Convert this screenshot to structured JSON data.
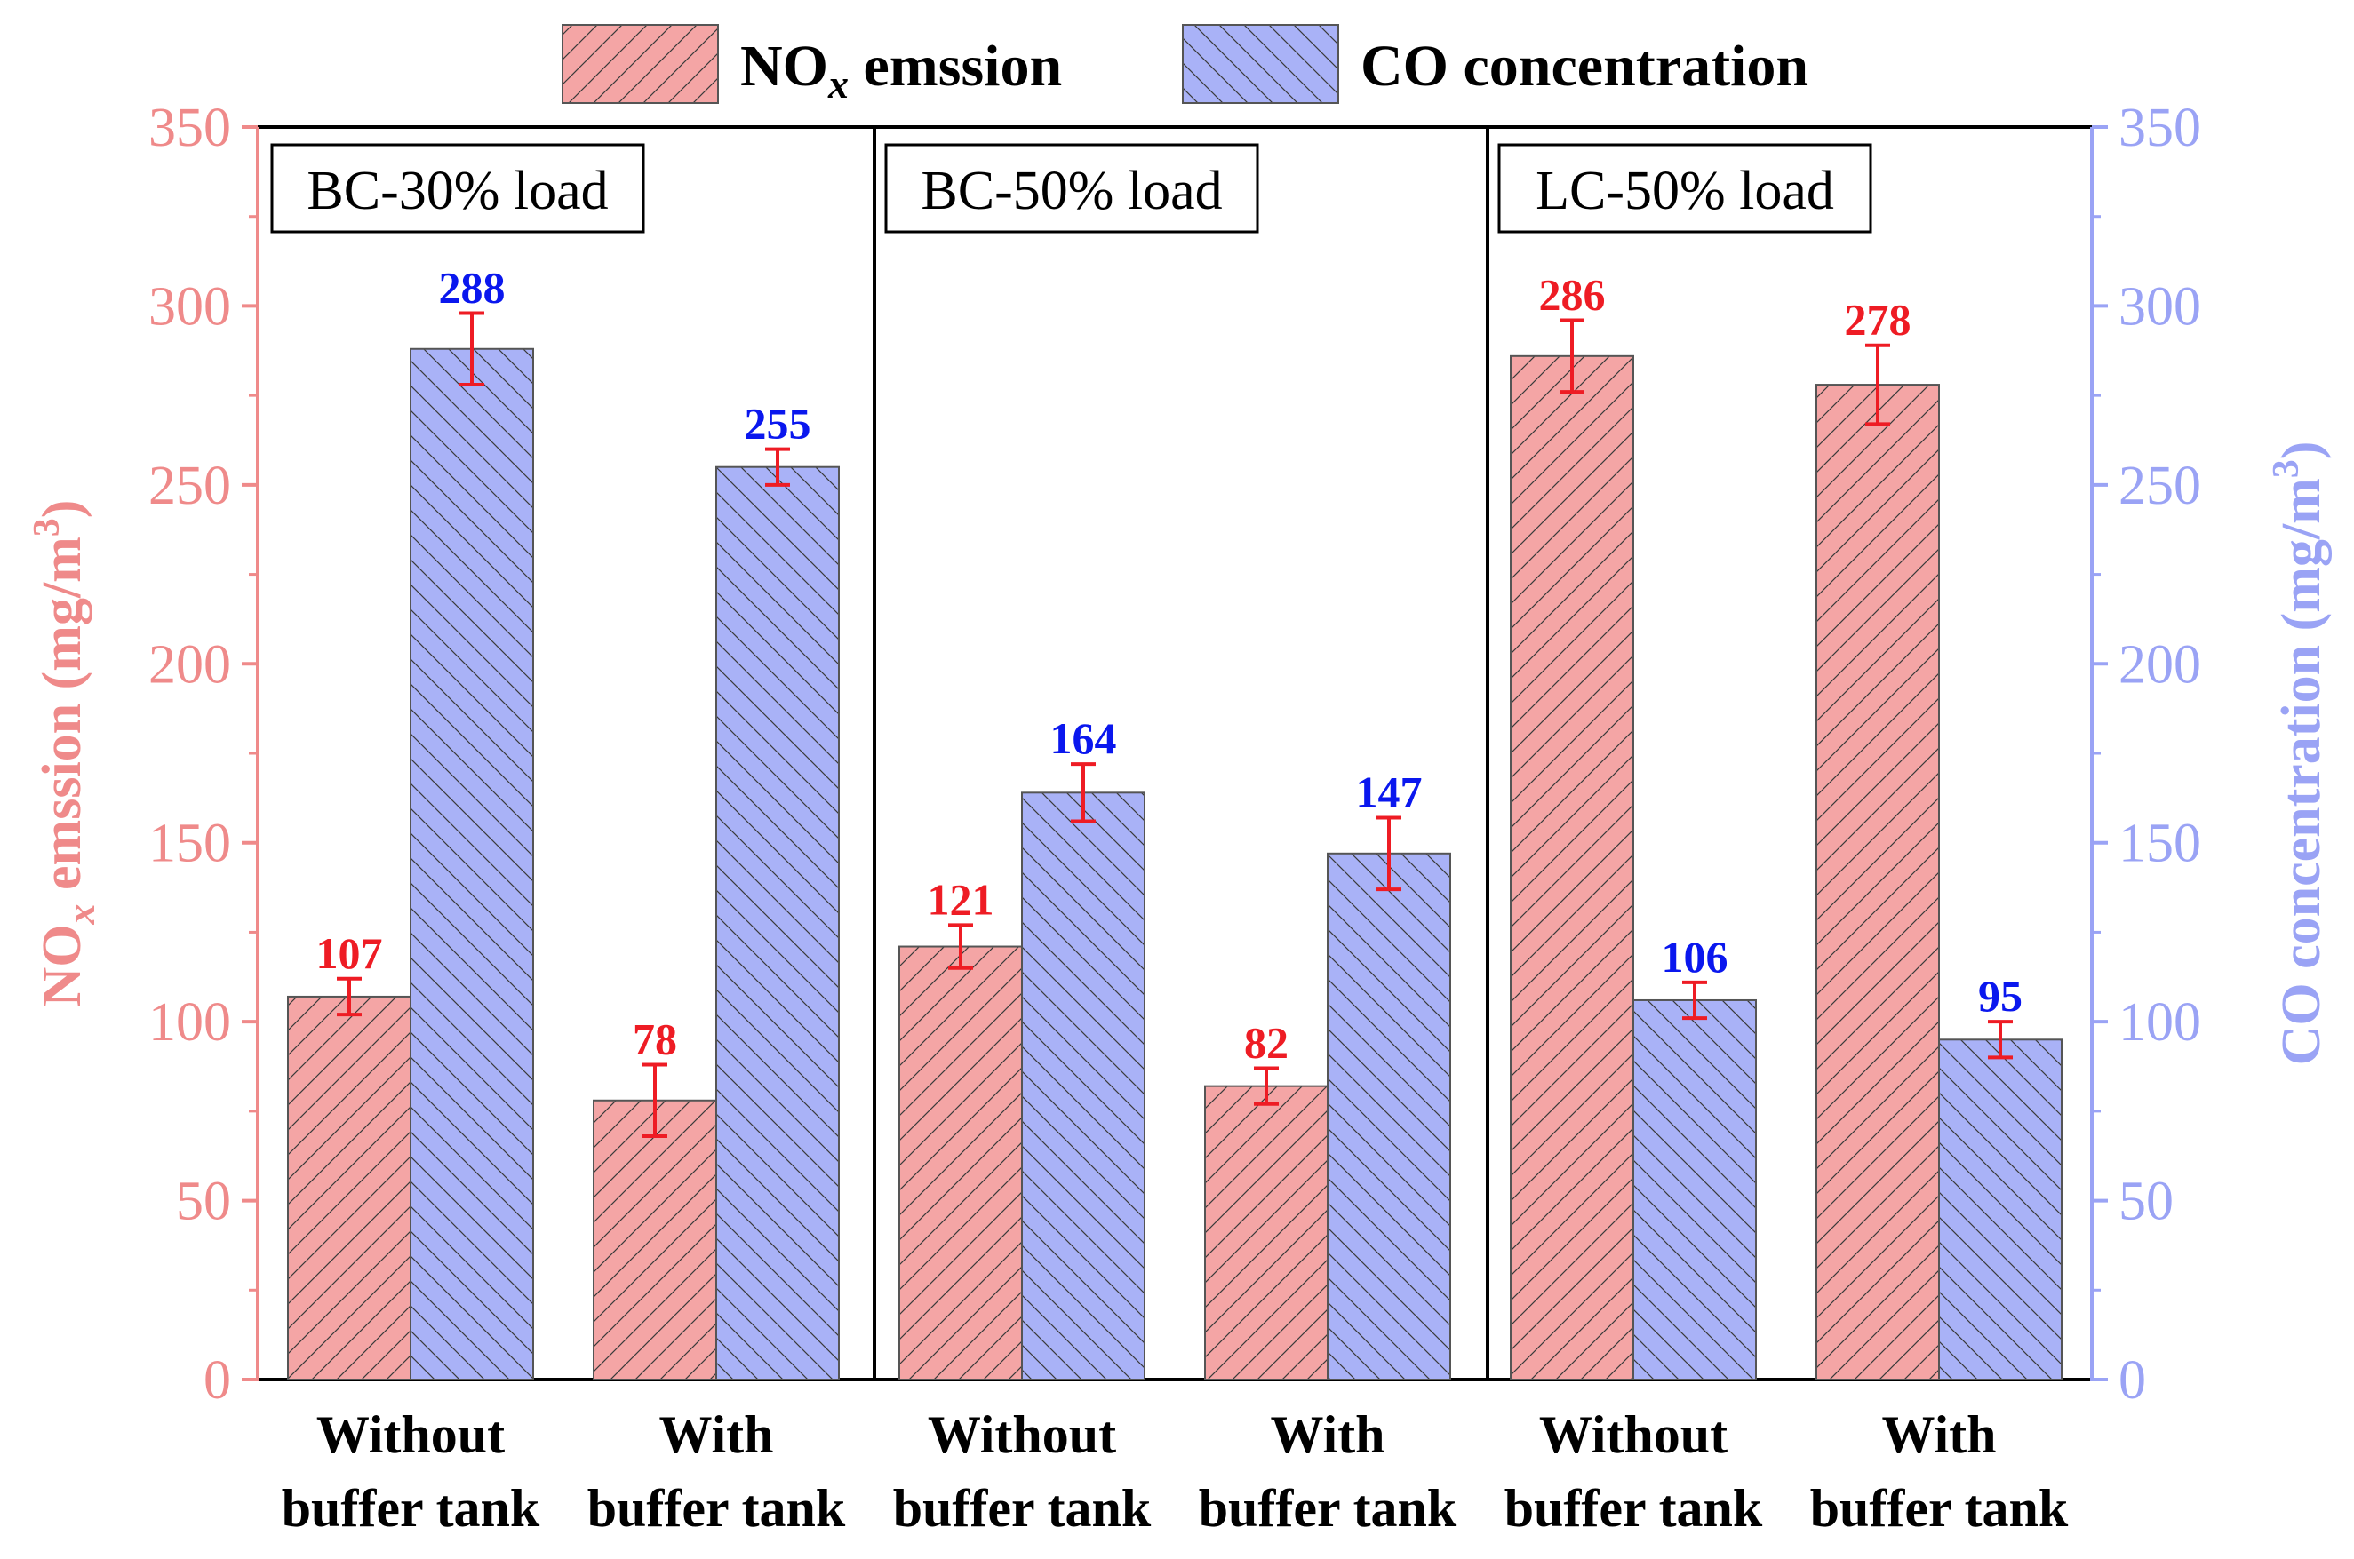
{
  "chart_data": {
    "type": "bar",
    "left_axis": {
      "label_main": "NO",
      "label_sub": "x",
      "label_rest": " emssion (mg/m",
      "label_sup": "3",
      "label_end": ")",
      "ylim": [
        0,
        350
      ],
      "ticks": [
        "0",
        "50",
        "100",
        "150",
        "200",
        "250",
        "300",
        "350"
      ],
      "color": "#ef8a8a"
    },
    "right_axis": {
      "label_main": "CO concentration (mg/m",
      "label_sup": "3",
      "label_end": ")",
      "ylim": [
        0,
        350
      ],
      "ticks": [
        "0",
        "50",
        "100",
        "150",
        "200",
        "250",
        "300",
        "350"
      ],
      "color": "#9aa3f5"
    },
    "legend": [
      {
        "name_main": "NO",
        "name_sub": "x",
        "name_rest": " emssion",
        "fill": "#f4a5a5"
      },
      {
        "name_main": "CO concentration",
        "fill": "#a9b2f7"
      }
    ],
    "panels": [
      {
        "label": "BC-30% load"
      },
      {
        "label": "BC-50% load"
      },
      {
        "label": "LC-50% load"
      }
    ],
    "category_lines": [
      {
        "line1": "Without",
        "line2": "buffer tank"
      },
      {
        "line1": "With",
        "line2": "buffer tank"
      },
      {
        "line1": "Without",
        "line2": "buffer tank"
      },
      {
        "line1": "With",
        "line2": "buffer tank"
      },
      {
        "line1": "Without",
        "line2": "buffer tank"
      },
      {
        "line1": "With",
        "line2": "buffer tank"
      }
    ],
    "series": [
      {
        "name": "NOx emssion",
        "axis": "left",
        "values": [
          107,
          78,
          121,
          82,
          286,
          278
        ],
        "errors": [
          5,
          10,
          6,
          5,
          10,
          11
        ],
        "labels": [
          "107",
          "78",
          "121",
          "82",
          "286",
          "278"
        ],
        "label_color": "#ee1c24"
      },
      {
        "name": "CO concentration",
        "axis": "right",
        "values": [
          288,
          255,
          164,
          147,
          106,
          95
        ],
        "errors": [
          10,
          5,
          8,
          10,
          5,
          5
        ],
        "labels": [
          "288",
          "255",
          "164",
          "147",
          "106",
          "95"
        ],
        "label_color": "#0a17ee"
      }
    ],
    "colors": {
      "nox_fill": "#f4a5a5",
      "co_fill": "#a9b2f7",
      "error_bar": "#ee1c24",
      "hatch": "#333333"
    }
  }
}
